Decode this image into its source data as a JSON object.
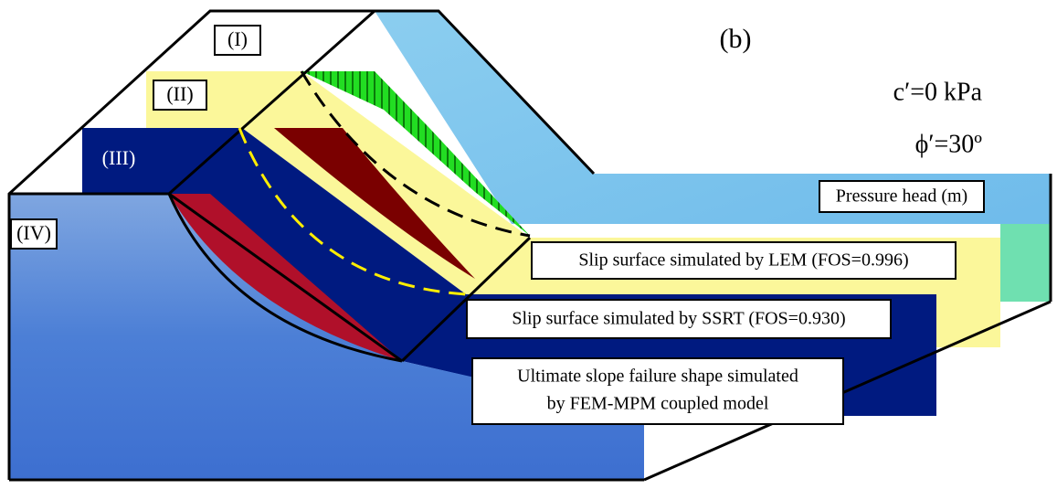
{
  "panel_label": "(b)",
  "layers": [
    "(I)",
    "(II)",
    "(III)",
    "(IV)"
  ],
  "parameters": [
    "c′=0 kPa",
    "ϕ′=30º"
  ],
  "annotations": {
    "pressure_head": "Pressure head (m)",
    "lem": "Slip surface simulated by LEM (FOS=0.996)",
    "ssrt": "Slip surface simulated by SSRT (FOS=0.930)",
    "mpm": [
      "Ultimate slope failure shape simulated",
      "by FEM-MPM coupled model"
    ]
  }
}
